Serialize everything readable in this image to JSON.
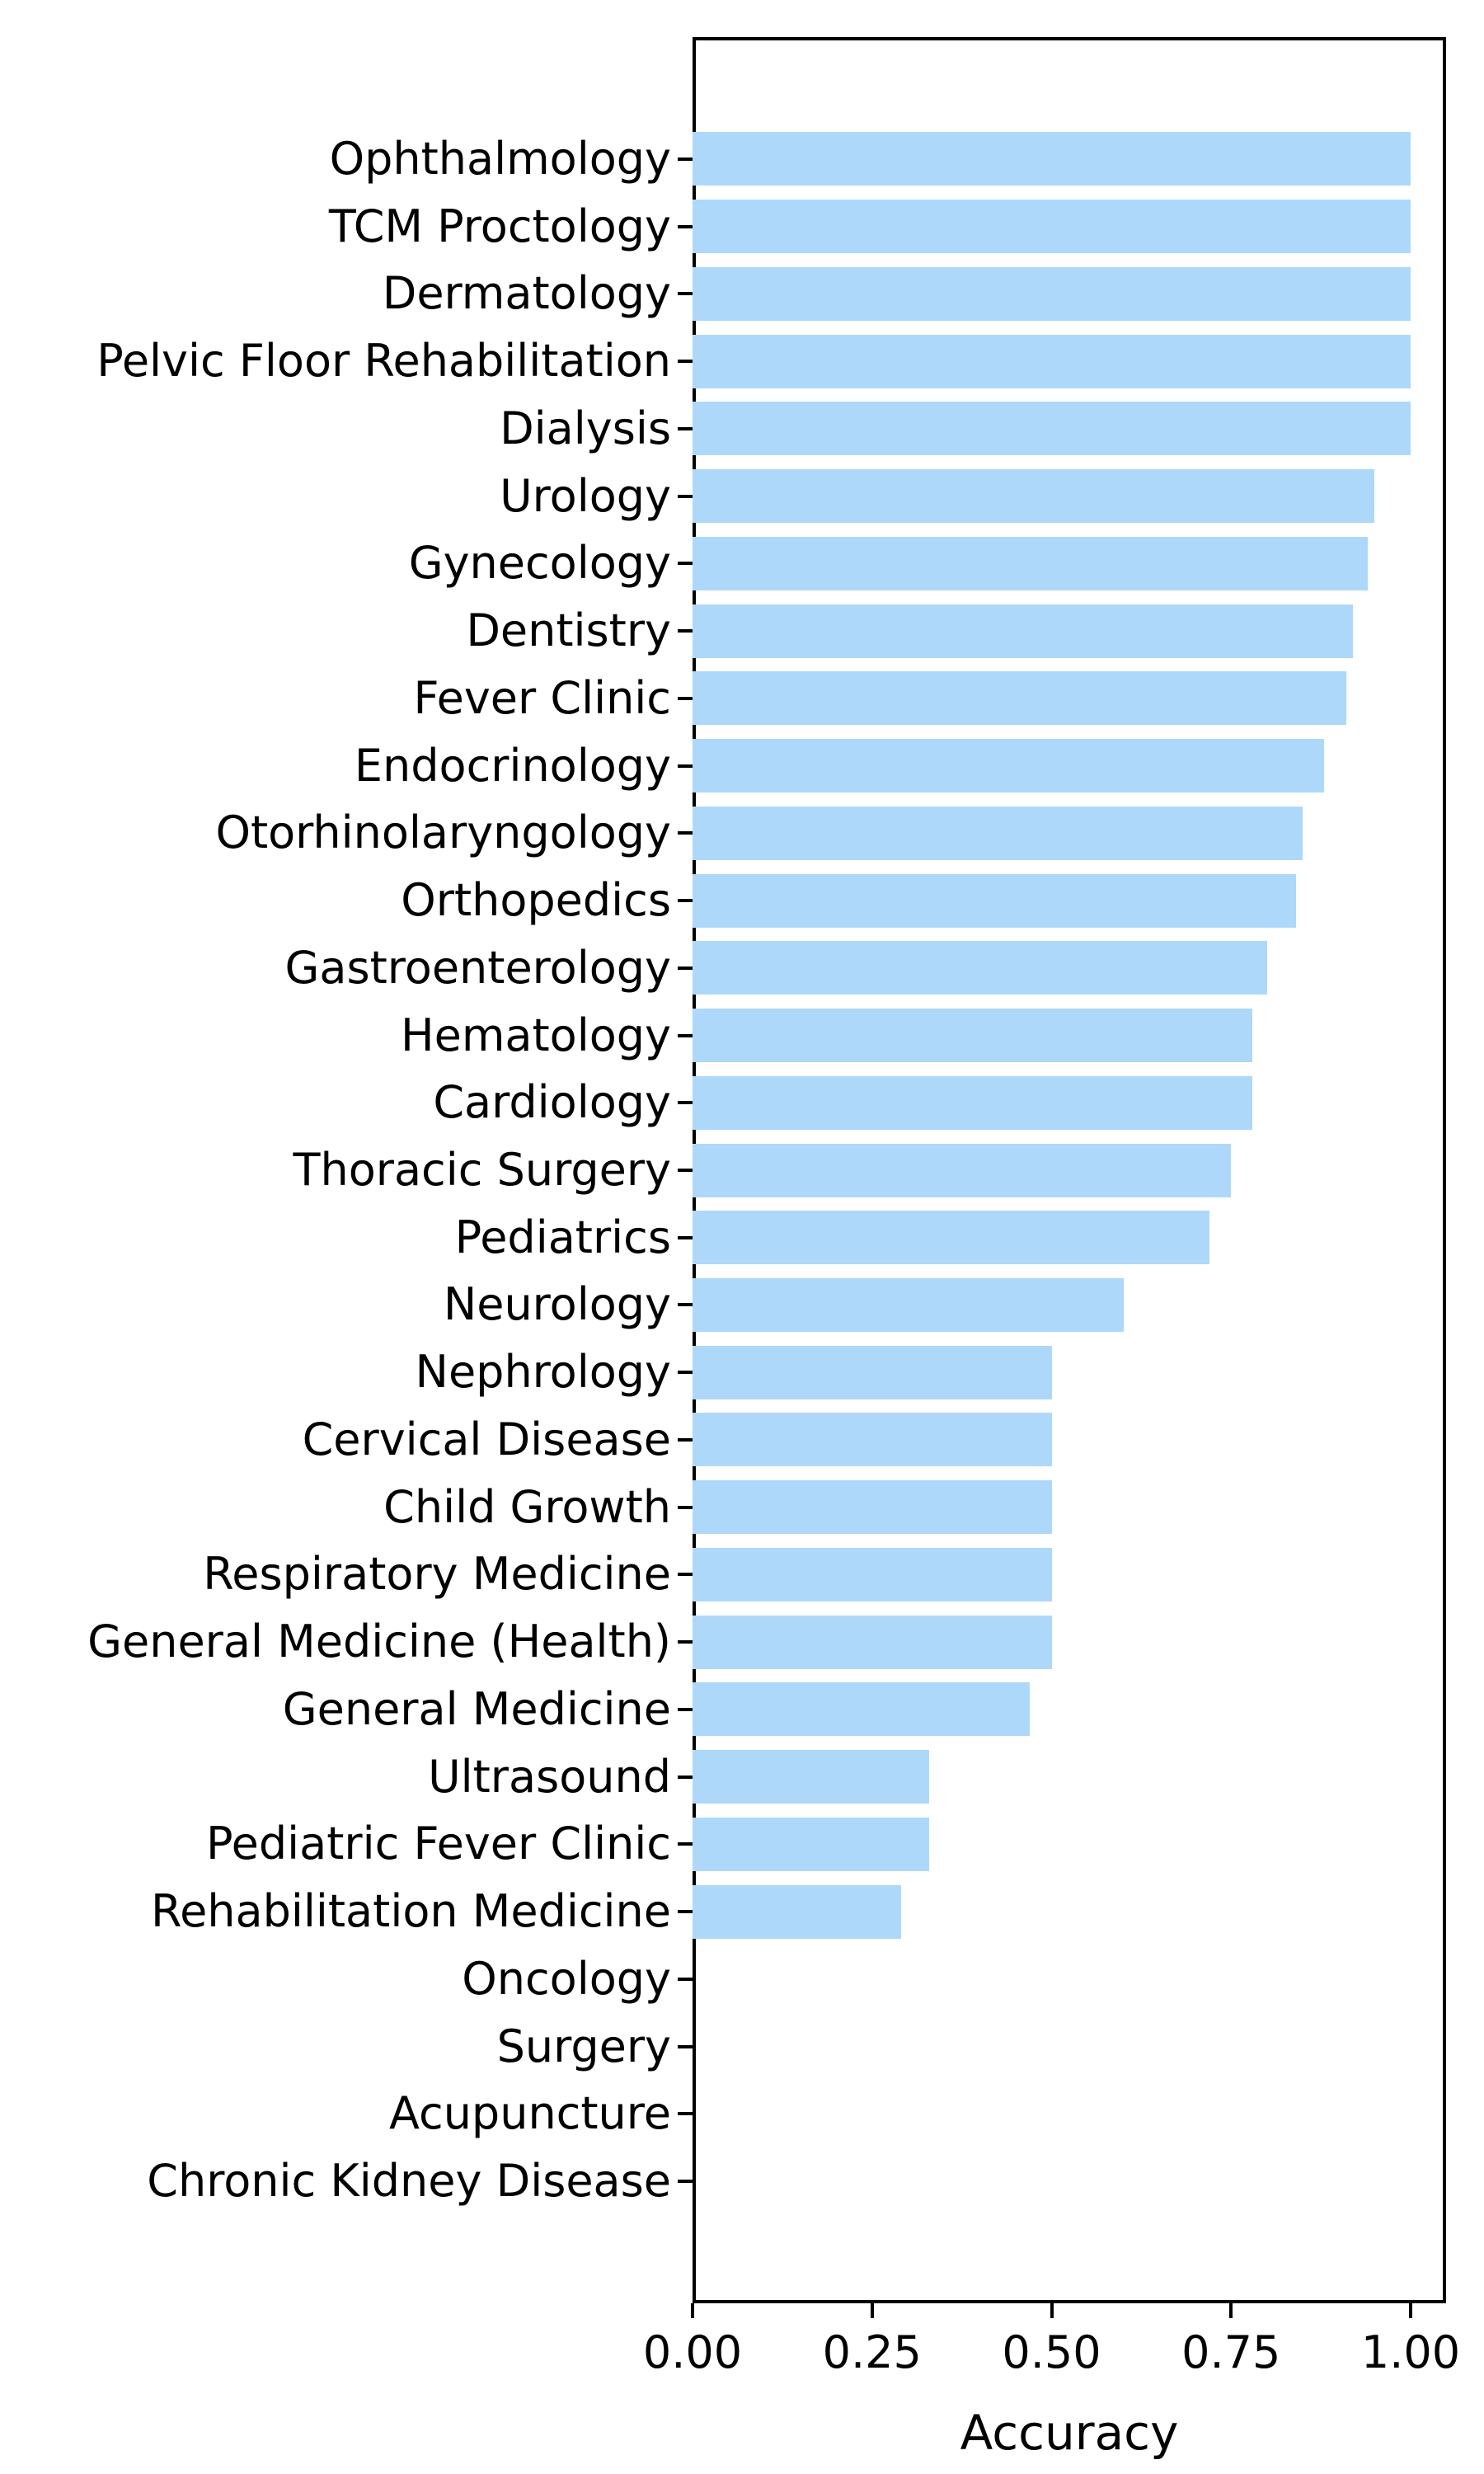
{
  "figure": {
    "background_color": "#ffffff",
    "axis_color": "#000000"
  },
  "chart_data": {
    "type": "bar",
    "orientation": "horizontal",
    "title": "",
    "xlabel": "Accuracy",
    "ylabel": "",
    "legend_position": "none",
    "grid": false,
    "bar_color": "#AED8FA",
    "xlim": [
      0,
      1.05
    ],
    "x_ticks": [
      {
        "label": "0.00",
        "value": 0.0
      },
      {
        "label": "0.25",
        "value": 0.25
      },
      {
        "label": "0.50",
        "value": 0.5
      },
      {
        "label": "0.75",
        "value": 0.75
      },
      {
        "label": "1.00",
        "value": 1.0
      }
    ],
    "categories": [
      "Ophthalmology",
      "TCM Proctology",
      "Dermatology",
      "Pelvic Floor Rehabilitation",
      "Dialysis",
      "Urology",
      "Gynecology",
      "Dentistry",
      "Fever Clinic",
      "Endocrinology",
      "Otorhinolaryngology",
      "Orthopedics",
      "Gastroenterology",
      "Hematology",
      "Cardiology",
      "Thoracic Surgery",
      "Pediatrics",
      "Neurology",
      "Nephrology",
      "Cervical Disease",
      "Child Growth",
      "Respiratory Medicine",
      "General Medicine (Health)",
      "General Medicine",
      "Ultrasound",
      "Pediatric Fever Clinic",
      "Rehabilitation Medicine",
      "Oncology",
      "Surgery",
      "Acupuncture",
      "Chronic Kidney Disease"
    ],
    "values": [
      1.0,
      1.0,
      1.0,
      1.0,
      1.0,
      0.95,
      0.94,
      0.92,
      0.91,
      0.88,
      0.85,
      0.84,
      0.8,
      0.78,
      0.78,
      0.75,
      0.72,
      0.6,
      0.5,
      0.5,
      0.5,
      0.5,
      0.5,
      0.47,
      0.33,
      0.33,
      0.29,
      0.0,
      0.0,
      0.0,
      0.0
    ]
  }
}
